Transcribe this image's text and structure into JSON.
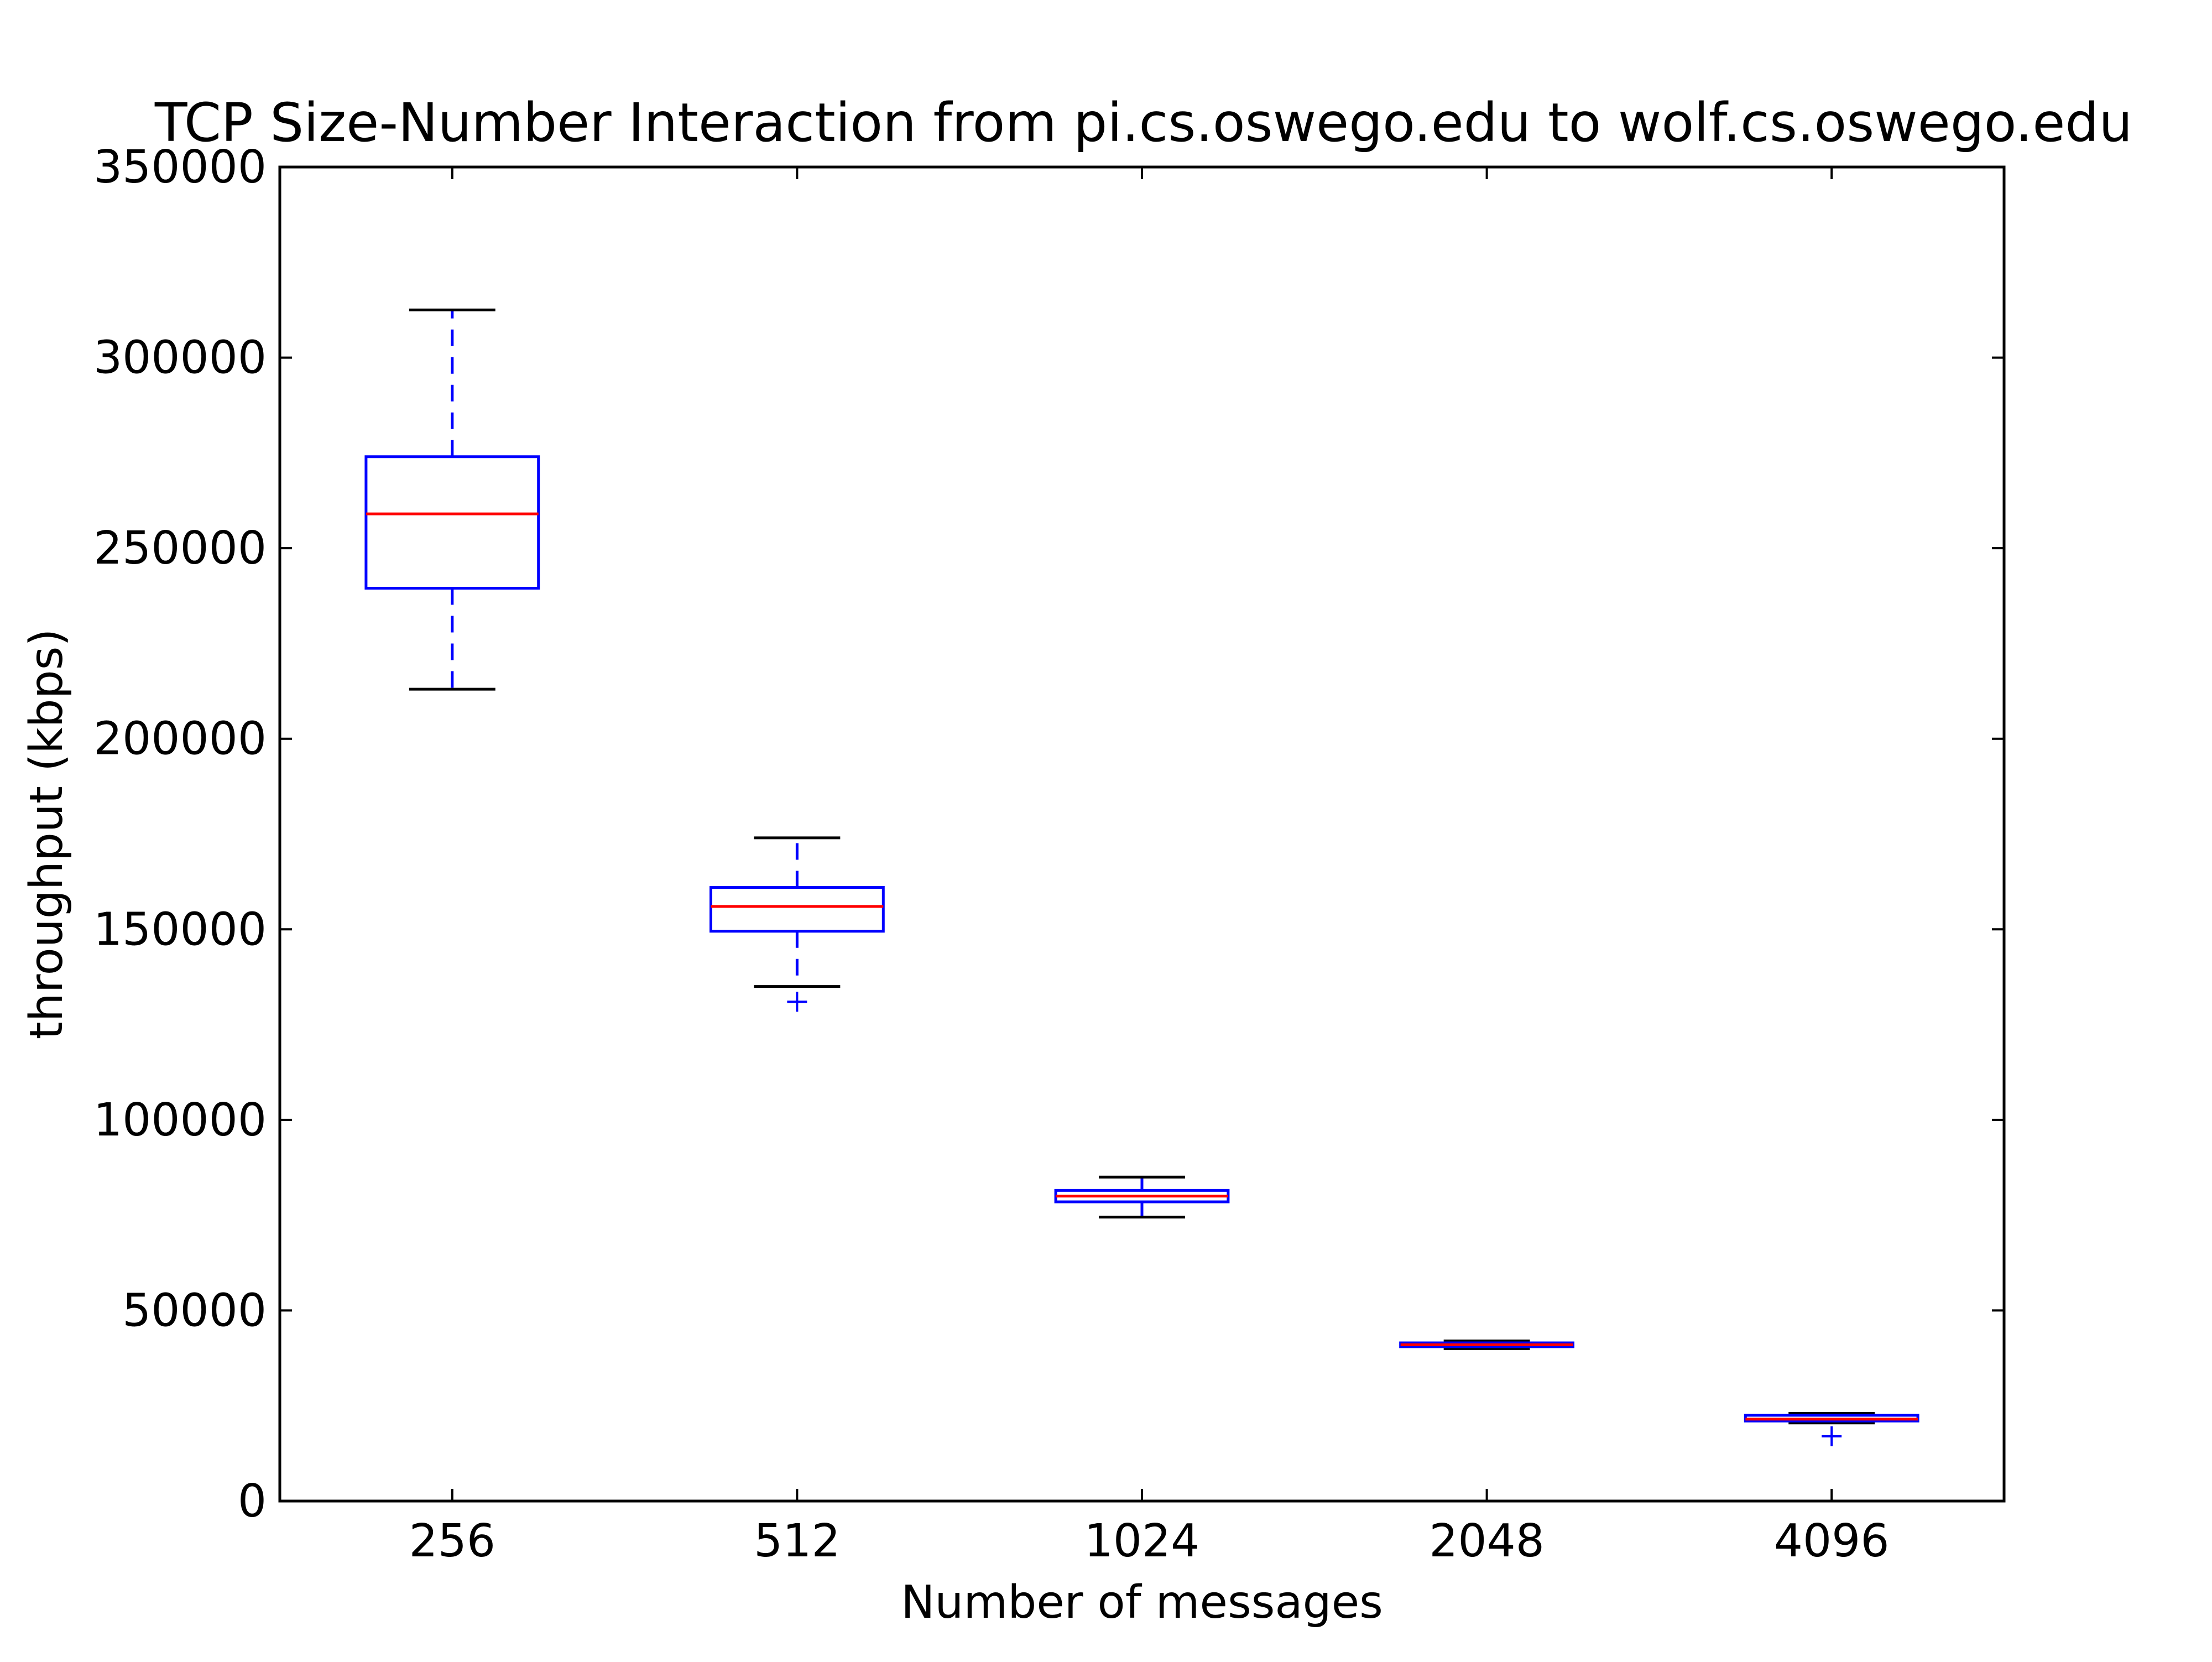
{
  "chart_data": {
    "type": "box",
    "title": "TCP Size-Number Interaction from pi.cs.oswego.edu to wolf.cs.oswego.edu",
    "xlabel": "Number of messages",
    "ylabel": "throughput (kbps)",
    "ylim": [
      0,
      350000
    ],
    "yticks": [
      0,
      50000,
      100000,
      150000,
      200000,
      250000,
      300000,
      350000
    ],
    "grid": false,
    "categories": [
      "256",
      "512",
      "1024",
      "2048",
      "4096"
    ],
    "boxes": [
      {
        "category": "256",
        "whisker_low": 213000,
        "q1": 239500,
        "median": 259000,
        "q3": 274000,
        "whisker_high": 312500,
        "outliers": []
      },
      {
        "category": "512",
        "whisker_low": 135000,
        "q1": 149500,
        "median": 156000,
        "q3": 161000,
        "whisker_high": 174000,
        "outliers": [
          131000
        ]
      },
      {
        "category": "1024",
        "whisker_low": 74500,
        "q1": 78500,
        "median": 80000,
        "q3": 81500,
        "whisker_high": 85000,
        "outliers": []
      },
      {
        "category": "2048",
        "whisker_low": 40000,
        "q1": 40500,
        "median": 41000,
        "q3": 41500,
        "whisker_high": 42000,
        "outliers": []
      },
      {
        "category": "4096",
        "whisker_low": 20500,
        "q1": 21000,
        "median": 21500,
        "q3": 22500,
        "whisker_high": 23000,
        "outliers": [
          17000
        ]
      }
    ],
    "colors": {
      "box": "#0000ff",
      "median": "#ff0000",
      "cap": "#000000",
      "outlier": "#0000ff"
    }
  }
}
